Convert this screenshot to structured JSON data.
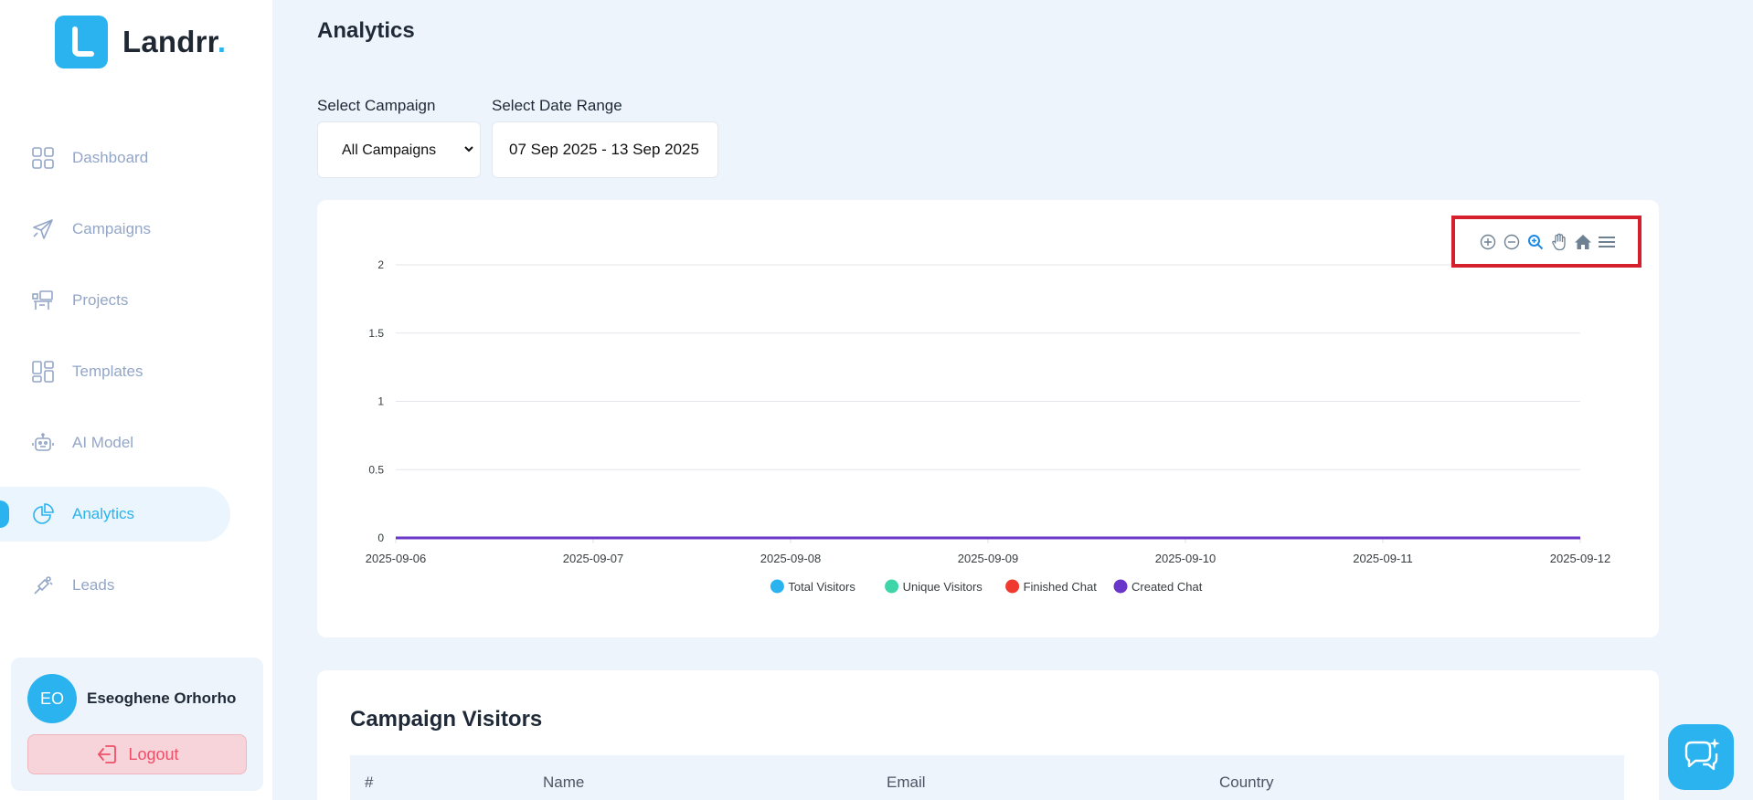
{
  "brand": {
    "name": "Landrr",
    "dot": ".",
    "accent": "#2ab3ef"
  },
  "nav": {
    "items": [
      {
        "label": "Dashboard",
        "icon": "grid-icon"
      },
      {
        "label": "Campaigns",
        "icon": "send-icon"
      },
      {
        "label": "Projects",
        "icon": "projects-icon"
      },
      {
        "label": "Templates",
        "icon": "templates-icon"
      },
      {
        "label": "AI Model",
        "icon": "robot-icon"
      },
      {
        "label": "Analytics",
        "icon": "pie-chart-icon",
        "active": true
      },
      {
        "label": "Leads",
        "icon": "leads-icon"
      }
    ]
  },
  "user": {
    "initials": "EO",
    "name": "Eseoghene Orhorho",
    "logout_label": "Logout"
  },
  "page": {
    "title": "Analytics"
  },
  "filters": {
    "campaign_label": "Select Campaign",
    "campaign_value": "All Campaigns",
    "date_label": "Select Date Range",
    "date_value": "07 Sep 2025 - 13 Sep 2025"
  },
  "toolbar": {
    "icons": [
      "zoom-in-icon",
      "zoom-out-icon",
      "selection-zoom-icon",
      "pan-hand-icon",
      "reset-home-icon",
      "menu-icon"
    ],
    "highlight_color": "#d61f2c"
  },
  "chart_data": {
    "type": "line",
    "x": [
      "2025-09-06",
      "2025-09-07",
      "2025-09-08",
      "2025-09-09",
      "2025-09-10",
      "2025-09-11",
      "2025-09-12"
    ],
    "ylim": [
      0,
      2
    ],
    "yticks": [
      "0",
      "0.5",
      "1",
      "1.5",
      "2"
    ],
    "grid": true,
    "legend": "bottom",
    "series": [
      {
        "name": "Total Visitors",
        "color": "#2ab3ef",
        "values": [
          0,
          0,
          0,
          0,
          0,
          0,
          0
        ]
      },
      {
        "name": "Unique Visitors",
        "color": "#3ed6a8",
        "values": [
          0,
          0,
          0,
          0,
          0,
          0,
          0
        ]
      },
      {
        "name": "Finished Chat",
        "color": "#f0392f",
        "values": [
          0,
          0,
          0,
          0,
          0,
          0,
          0
        ]
      },
      {
        "name": "Created Chat",
        "color": "#6a35c9",
        "values": [
          0,
          0,
          0,
          0,
          0,
          0,
          0
        ]
      }
    ]
  },
  "visitors": {
    "title": "Campaign Visitors",
    "columns": [
      "#",
      "Name",
      "Email",
      "Country"
    ]
  }
}
